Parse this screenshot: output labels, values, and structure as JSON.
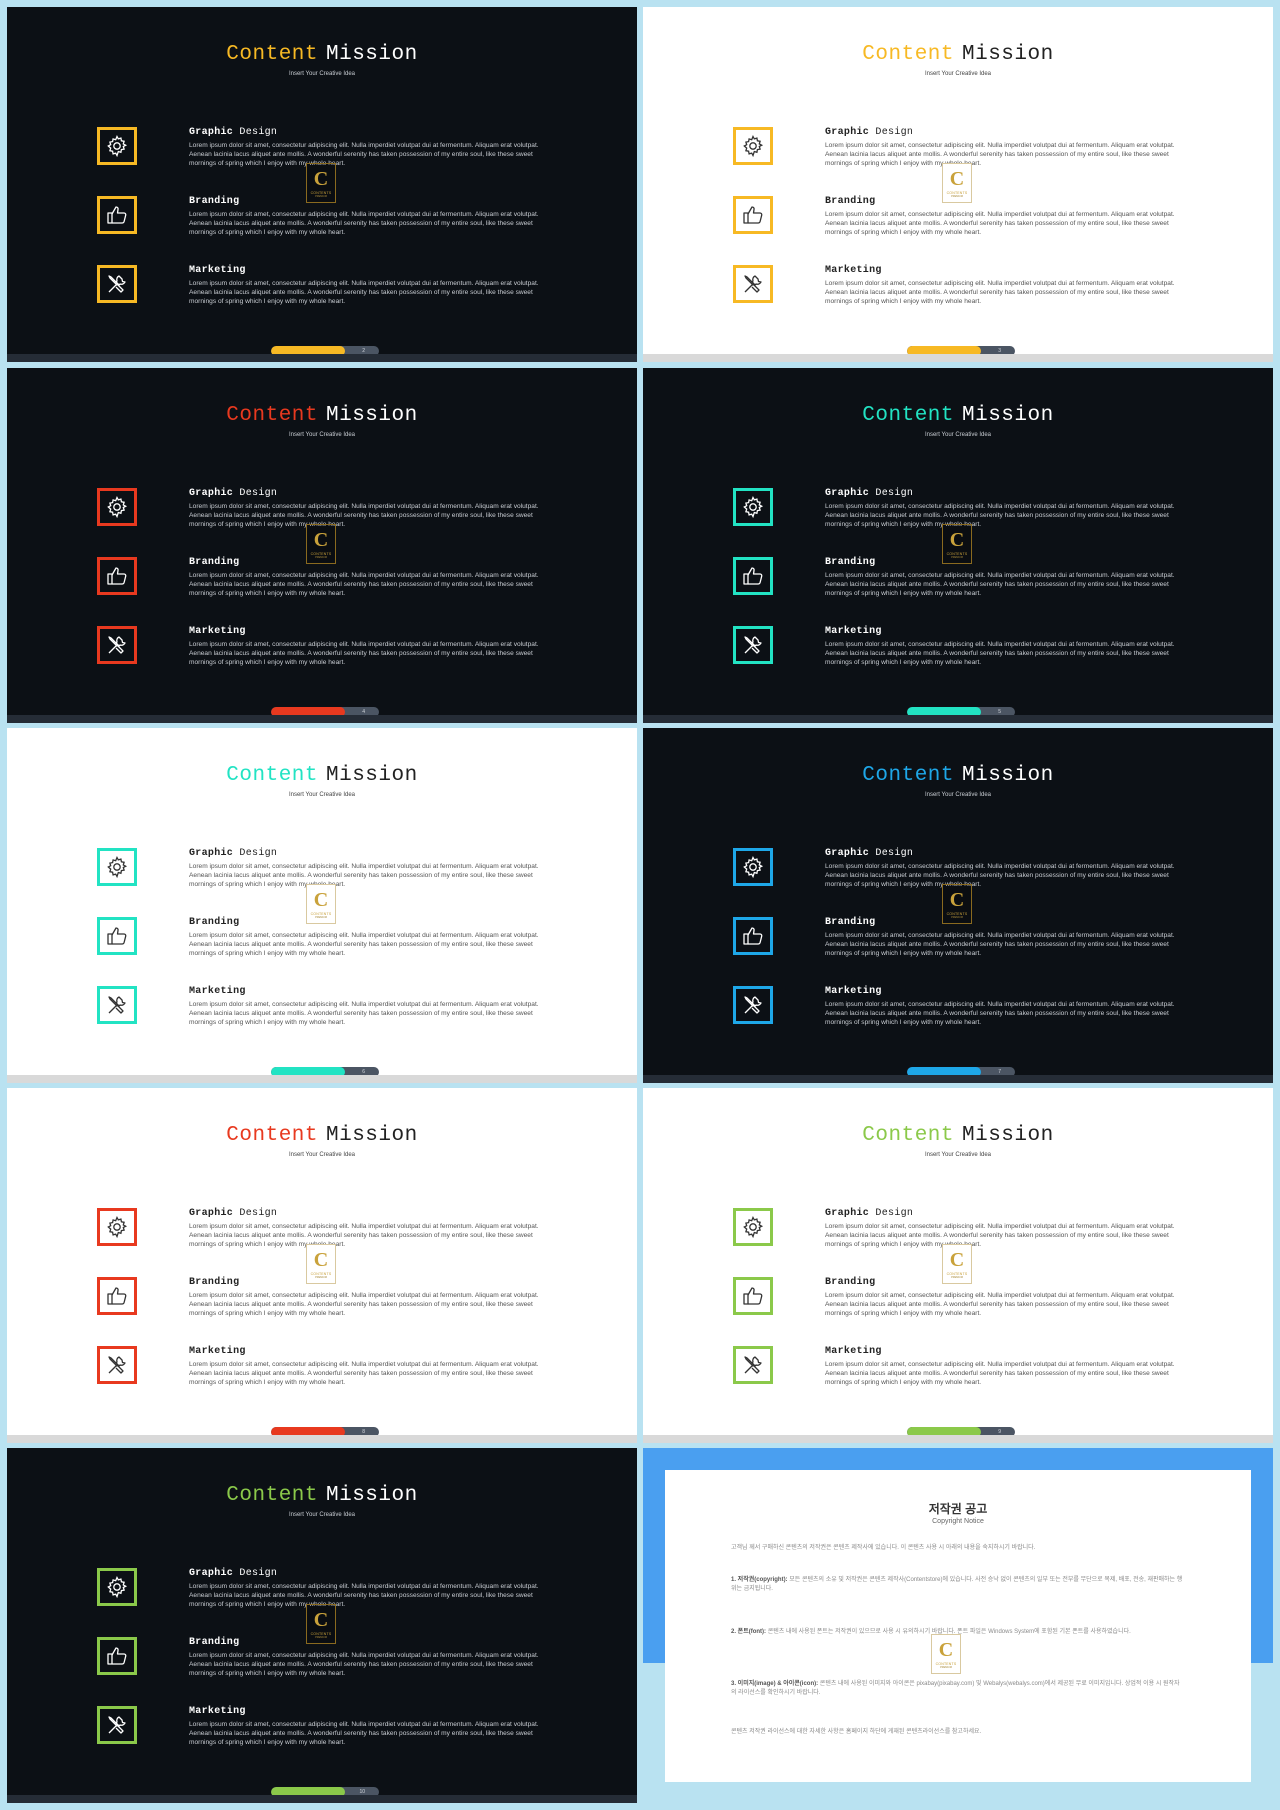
{
  "page": {
    "title_word1": "Content",
    "title_word2": "Mission",
    "subtitle": "Insert Your Creative Idea",
    "lorem": "Lorem ipsum dolor sit amet, consectetur adipiscing elit. Nulla imperdiet volutpat dui at fermentum. Aliquam erat volutpat. Aenean lacinia lacus aliquet ante mollis. A wonderful serenity has taken possession of my entire soul, like these sweet mornings of spring which I enjoy with my whole heart.",
    "items": [
      {
        "title1": "Graphic",
        "title2": "Design",
        "icon": "gear-icon"
      },
      {
        "title1": "Branding",
        "title2": "",
        "icon": "thumbs-up-icon"
      },
      {
        "title1": "Marketing",
        "title2": "",
        "icon": "tools-icon"
      }
    ],
    "seal": {
      "letter": "C",
      "line1": "CONTENTS",
      "line2": "PREMIUM"
    }
  },
  "slides": [
    {
      "theme": "dark",
      "accent": "#f7b924",
      "page_number": "2"
    },
    {
      "theme": "light",
      "accent": "#f7b924",
      "page_number": "3"
    },
    {
      "theme": "dark",
      "accent": "#e8391f",
      "page_number": "4"
    },
    {
      "theme": "dark",
      "accent": "#22e3c3",
      "page_number": "5"
    },
    {
      "theme": "light",
      "accent": "#22e3c3",
      "page_number": "6"
    },
    {
      "theme": "dark",
      "accent": "#1ea7e8",
      "page_number": "7"
    },
    {
      "theme": "light",
      "accent": "#e8391f",
      "page_number": "8"
    },
    {
      "theme": "light",
      "accent": "#8bc94a",
      "page_number": "9"
    },
    {
      "theme": "dark",
      "accent": "#8bc94a",
      "page_number": "10"
    }
  ],
  "notice": {
    "title": "저작권 공고",
    "subtitle": "Copyright Notice",
    "intro": "고객님 께서 구매하신 콘텐츠의 저작권은 콘텐츠 제작사에 있습니다. 이 콘텐츠 사용 시 아래의 내용을 숙지하시기 바랍니다.",
    "p1_label": "1. 저작권(copyright):",
    "p1_text": "모든 콘텐츠의 소유 및 저작권은 콘텐츠 제작사(Contentstore)에 있습니다. 사전 승낙 없이 콘텐츠의 일부 또는 전부를 무단으로 복제, 배포, 전송, 재판매하는 행위는 금지됩니다.",
    "p2_label": "2. 폰트(font):",
    "p2_text": "콘텐츠 내에 사용된 폰트는 저작권이 있으므로 사용 시 유의하시기 바랍니다. 폰트 파일은 Windows System에 포함된 기본 폰트를 사용하였습니다.",
    "p3_label": "3. 이미지(image) & 아이콘(icon):",
    "p3_text": "콘텐츠 내에 사용된 이미지와 아이콘은 pixabay(pixabay.com) 및 Webalys(webalys.com)에서 제공된 무료 이미지입니다. 상업적 이용 시 원작자의 라이선스를 확인하시기 바랍니다.",
    "footer": "콘텐츠 저작권 라이선스에 대한 자세한 사항은 홈페이지 하단에 게재된 콘텐츠라이선스를 참고하세요."
  }
}
